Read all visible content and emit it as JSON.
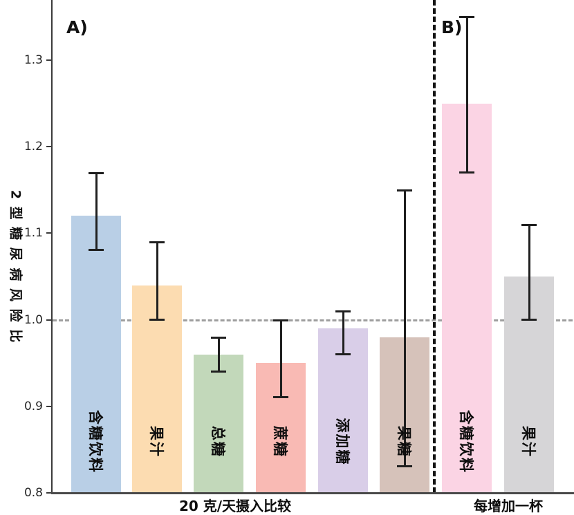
{
  "chart_data": {
    "type": "bar",
    "title": "",
    "ylabel": "2 型 糖 尿 病 风 险 比",
    "xlabel": "",
    "ylim": [
      0.8,
      1.37
    ],
    "yticks": [
      "0.8",
      "0.9",
      "1.0",
      "1.1",
      "1.2",
      "1.3"
    ],
    "reference_line": 1.0,
    "grid": false,
    "error_bars": true,
    "legend": "none",
    "panels": [
      {
        "label": "A)",
        "xlabel": "20 克/天摄入比较",
        "bars": [
          {
            "category": "含糖饮料",
            "value": 1.12,
            "ci_low": 1.08,
            "ci_high": 1.17,
            "color": "#b9cfe6"
          },
          {
            "category": "果汁",
            "value": 1.04,
            "ci_low": 1.0,
            "ci_high": 1.09,
            "color": "#fcdcb1"
          },
          {
            "category": "总糖",
            "value": 0.96,
            "ci_low": 0.94,
            "ci_high": 0.98,
            "color": "#c2d8ba"
          },
          {
            "category": "蔗糖",
            "value": 0.95,
            "ci_low": 0.91,
            "ci_high": 1.0,
            "color": "#f9bab4"
          },
          {
            "category": "添加糖",
            "value": 0.99,
            "ci_low": 0.96,
            "ci_high": 1.01,
            "color": "#d9cee8"
          },
          {
            "category": "果糖",
            "value": 0.98,
            "ci_low": 0.83,
            "ci_high": 1.15,
            "color": "#d6c2ba"
          }
        ]
      },
      {
        "label": "B)",
        "xlabel": "每增加一杯",
        "bars": [
          {
            "category": "含糖饮料",
            "value": 1.25,
            "ci_low": 1.17,
            "ci_high": 1.35,
            "color": "#fbd4e4"
          },
          {
            "category": "果汁",
            "value": 1.05,
            "ci_low": 1.0,
            "ci_high": 1.11,
            "color": "#d6d5d7"
          }
        ]
      }
    ]
  }
}
